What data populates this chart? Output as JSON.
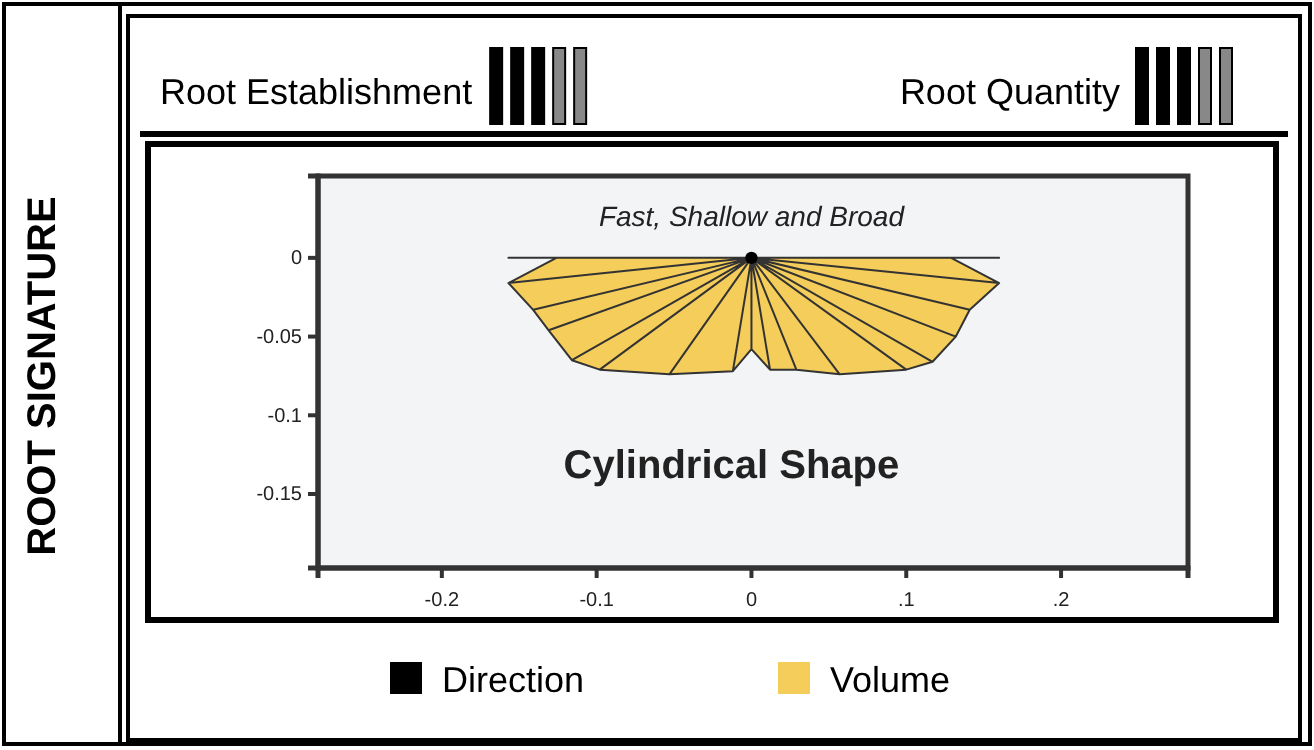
{
  "chart_data": {
    "type": "area",
    "title": "ROOT SIGNATURE",
    "annotations": [
      "Root Establishment",
      "Root Quantity",
      "Fast, Shallow and Broad",
      "Cylindrical Shape"
    ],
    "series": [
      {
        "name": "Volume",
        "color": "#f5cd5a",
        "x": [
          -0.126,
          -0.157,
          -0.141,
          -0.131,
          -0.116,
          -0.098,
          -0.053,
          -0.012,
          0,
          0.012,
          0.029,
          0.057,
          0.1,
          0.117,
          0.132,
          0.141,
          0.16,
          0.129
        ],
        "values": [
          0,
          -0.016,
          -0.033,
          -0.046,
          -0.065,
          -0.071,
          -0.074,
          -0.072,
          -0.058,
          -0.071,
          -0.071,
          -0.074,
          -0.071,
          -0.066,
          -0.05,
          -0.033,
          -0.016,
          0
        ]
      },
      {
        "name": "Direction",
        "type": "scatter",
        "marker": "circle",
        "color": "#000000",
        "x": [
          0
        ],
        "values": [
          0
        ]
      }
    ],
    "xlim": [
      -0.28,
      0.282
    ],
    "ylim": [
      -0.197,
      0.052
    ],
    "xticks": [
      -0.2,
      -0.1,
      0,
      {
        "value": 0.1,
        "label": ".1"
      },
      {
        "value": 0.2,
        "label": ".2"
      }
    ],
    "yticks": [
      0,
      -0.05,
      -0.1,
      -0.15
    ],
    "grid": false,
    "legend": "bottom"
  }
}
